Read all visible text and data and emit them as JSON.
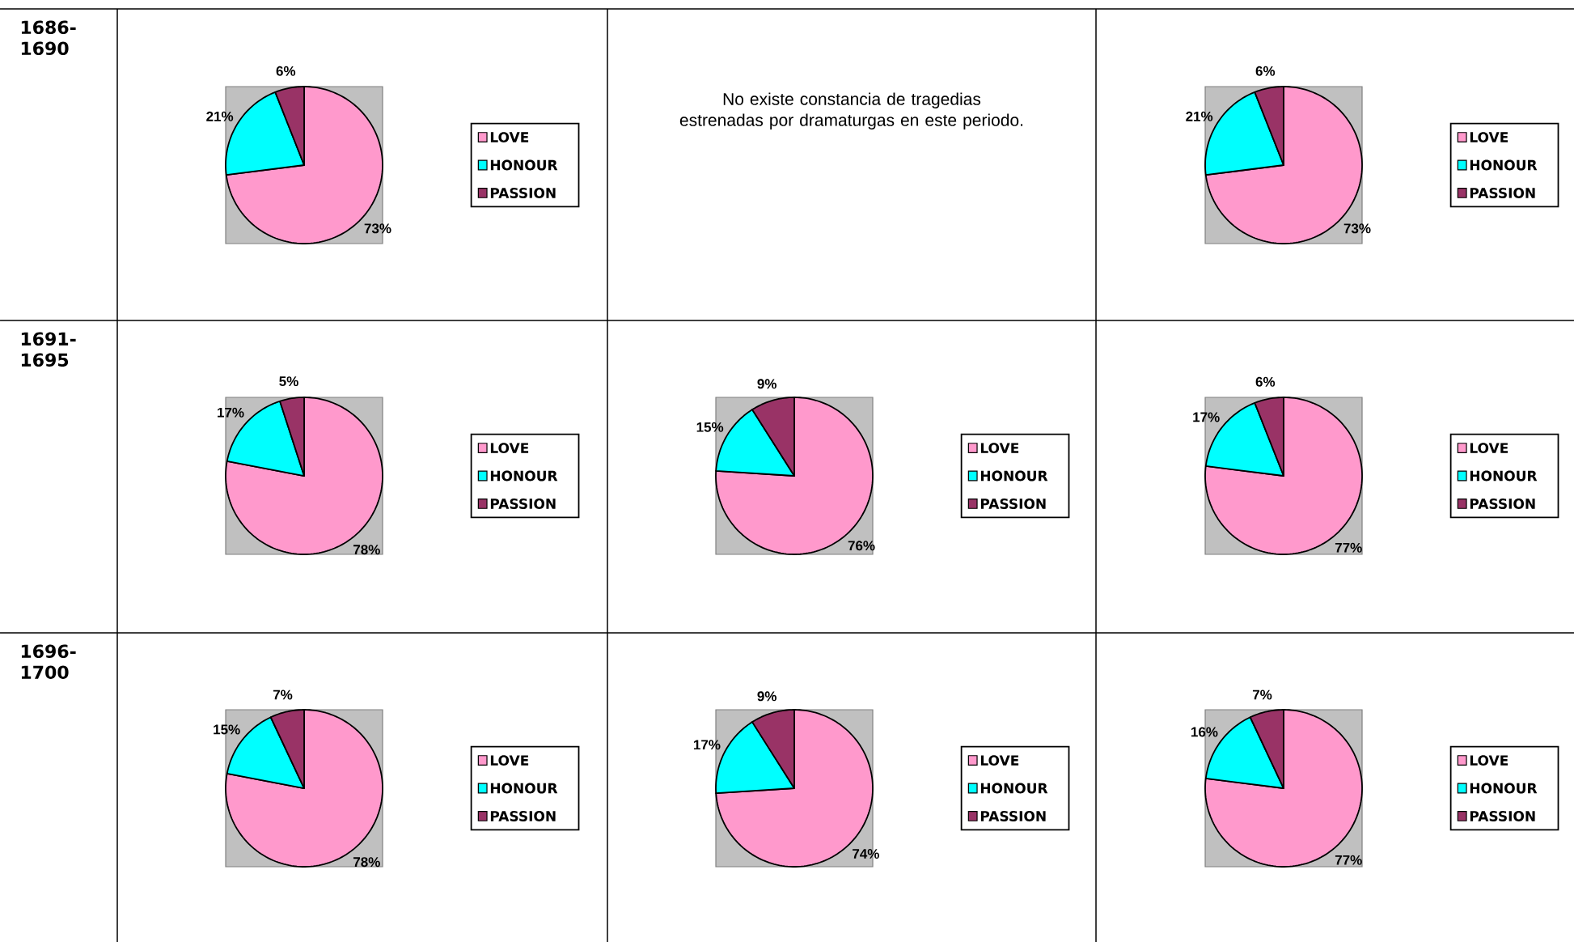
{
  "chart_data": [
    {
      "type": "other",
      "title": "1686-1690"
    },
    {
      "type": "pie",
      "categories": [
        "LOVE",
        "HONOUR",
        "PASSION"
      ],
      "values": [
        73,
        21,
        6
      ],
      "colors": [
        "#ff99cc",
        "#00ffff",
        "#993366"
      ],
      "value_labels": [
        "73%",
        "21%",
        "6%"
      ],
      "legend": "right"
    },
    {
      "type": "other",
      "annotations": [
        "No existe constancia de tragedias estrenadas por dramaturgas en este periodo."
      ]
    },
    {
      "type": "pie",
      "categories": [
        "LOVE",
        "HONOUR",
        "PASSION"
      ],
      "values": [
        73,
        21,
        6
      ],
      "colors": [
        "#ff99cc",
        "#00ffff",
        "#993366"
      ],
      "value_labels": [
        "73%",
        "21%",
        "6%"
      ],
      "legend": "right"
    },
    {
      "type": "other",
      "title": "1691-1695"
    },
    {
      "type": "pie",
      "categories": [
        "LOVE",
        "HONOUR",
        "PASSION"
      ],
      "values": [
        78,
        17,
        5
      ],
      "colors": [
        "#ff99cc",
        "#00ffff",
        "#993366"
      ],
      "value_labels": [
        "78%",
        "17%",
        "5%"
      ],
      "legend": "right"
    },
    {
      "type": "pie",
      "categories": [
        "LOVE",
        "HONOUR",
        "PASSION"
      ],
      "values": [
        76,
        15,
        9
      ],
      "colors": [
        "#ff99cc",
        "#00ffff",
        "#993366"
      ],
      "value_labels": [
        "76%",
        "15%",
        "9%"
      ],
      "legend": "right"
    },
    {
      "type": "pie",
      "categories": [
        "LOVE",
        "HONOUR",
        "PASSION"
      ],
      "values": [
        77,
        17,
        6
      ],
      "colors": [
        "#ff99cc",
        "#00ffff",
        "#993366"
      ],
      "value_labels": [
        "77%",
        "17%",
        "6%"
      ],
      "legend": "right"
    },
    {
      "type": "other",
      "title": "1696-1700"
    },
    {
      "type": "pie",
      "categories": [
        "LOVE",
        "HONOUR",
        "PASSION"
      ],
      "values": [
        78,
        15,
        7
      ],
      "colors": [
        "#ff99cc",
        "#00ffff",
        "#993366"
      ],
      "value_labels": [
        "78%",
        "15%",
        "7%"
      ],
      "legend": "right"
    },
    {
      "type": "pie",
      "categories": [
        "LOVE",
        "HONOUR",
        "PASSION"
      ],
      "values": [
        74,
        17,
        9
      ],
      "colors": [
        "#ff99cc",
        "#00ffff",
        "#993366"
      ],
      "value_labels": [
        "74%",
        "17%",
        "9%"
      ],
      "legend": "right"
    },
    {
      "type": "pie",
      "categories": [
        "LOVE",
        "HONOUR",
        "PASSION"
      ],
      "values": [
        77,
        16,
        7
      ],
      "colors": [
        "#ff99cc",
        "#00ffff",
        "#993366"
      ],
      "value_labels": [
        "77%",
        "16%",
        "7%"
      ],
      "legend": "right"
    }
  ]
}
